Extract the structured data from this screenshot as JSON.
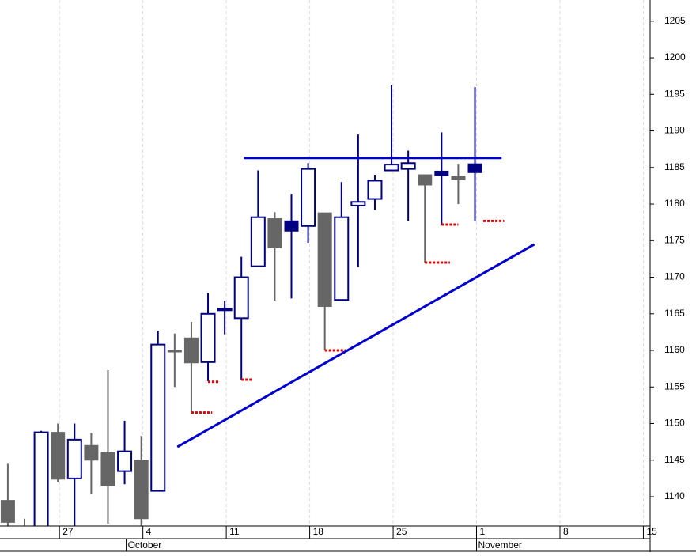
{
  "chart_data": {
    "type": "candlestick",
    "series": [
      {
        "open": [
          1139.5,
          1135,
          1135,
          1148.8,
          1142.5,
          1147,
          1146,
          1143.5,
          1145,
          1140.8,
          1160,
          1161.7,
          1158.4,
          1165.6,
          1164.4,
          1171.5,
          1178,
          1177.7,
          1177,
          1178.8,
          1166.9,
          1179.8,
          1180.7,
          1184.6,
          1184.8,
          1184,
          1184.5,
          1183.8,
          1185.5
        ],
        "high": [
          1144.5,
          1137,
          1149,
          1150,
          1150,
          1148.7,
          1157.3,
          1150.4,
          1148.3,
          1162.7,
          1162.3,
          1163.9,
          1167.8,
          1166.8,
          1172.8,
          1184.6,
          1178.9,
          1181.4,
          1185.6,
          1178.8,
          1183,
          1189.5,
          1184,
          1196.3,
          1187.3,
          1184,
          1189.8,
          1185.5,
          1196
        ],
        "low": [
          1136,
          1130,
          1135,
          1142,
          1136,
          1140.4,
          1136.3,
          1141.7,
          1136,
          1140.8,
          1155,
          1151.6,
          1155.8,
          1162.2,
          1156,
          1171.5,
          1166.8,
          1167.1,
          1174.7,
          1160,
          1166.9,
          1171.4,
          1179.2,
          1184.6,
          1177.7,
          1172,
          1177.2,
          1180,
          1177.7
        ],
        "close": [
          1136.5,
          1133,
          1148.8,
          1142.4,
          1147.8,
          1145,
          1141.5,
          1146.2,
          1137,
          1160.8,
          1160,
          1158.3,
          1165,
          1165.7,
          1170,
          1178.2,
          1174,
          1176.3,
          1184.8,
          1166,
          1178.2,
          1180.3,
          1183.2,
          1185.4,
          1185.6,
          1182.6,
          1183.9,
          1183.3,
          1184.3
        ],
        "fills": [
          "#666666",
          "#666666",
          "none",
          "#666666",
          "none",
          "#666666",
          "#666666",
          "none",
          "#666666",
          "none",
          "#666666",
          "#666666",
          "none",
          "none",
          "none",
          "none",
          "#666666",
          "#000080",
          "none",
          "#666666",
          "none",
          "none",
          "none",
          "none",
          "none",
          "#666666",
          "#000080",
          "#666666",
          "#000080"
        ]
      }
    ],
    "outline_color": "#000080",
    "xlim": [
      -0.47,
      38.5
    ],
    "xticks": [
      {
        "value": 3,
        "label": "27"
      },
      {
        "value": 8,
        "label": "4"
      },
      {
        "value": 13,
        "label": "11"
      },
      {
        "value": 18,
        "label": "18"
      },
      {
        "value": 23,
        "label": "25"
      },
      {
        "value": 28,
        "label": "1"
      },
      {
        "value": 33,
        "label": "8"
      },
      {
        "value": 38,
        "label": "15"
      }
    ],
    "month_ticks": [
      {
        "value": 7,
        "label": "October"
      },
      {
        "value": 28,
        "label": "November"
      }
    ],
    "ylim": [
      1136,
      1207.9
    ],
    "yticks": [
      1140,
      1145,
      1150,
      1155,
      1160,
      1165,
      1170,
      1175,
      1180,
      1185,
      1190,
      1195,
      1200,
      1205
    ],
    "trend_lines": [
      {
        "x": [
          14.14,
          29.6
        ],
        "y": [
          1186.3,
          1186.3
        ],
        "color": "#0000cc"
      },
      {
        "x": [
          10.16,
          31.56
        ],
        "y": [
          1146.8,
          1174.5
        ],
        "color": "#0000cc"
      }
    ],
    "stops": {
      "color": "#dd0000",
      "items": [
        {
          "x": [
            11,
            12.25
          ],
          "y": 1151.5
        },
        {
          "x": [
            12,
            12.7
          ],
          "y": 1155.7
        },
        {
          "x": [
            14,
            14.7
          ],
          "y": 1156
        },
        {
          "x": [
            19,
            20.25
          ],
          "y": 1160
        },
        {
          "x": [
            25,
            26.5
          ],
          "y": 1172
        },
        {
          "x": [
            26,
            27
          ],
          "y": 1177.2
        },
        {
          "x": [
            28.5,
            29.75
          ],
          "y": 1177.7
        }
      ]
    }
  }
}
